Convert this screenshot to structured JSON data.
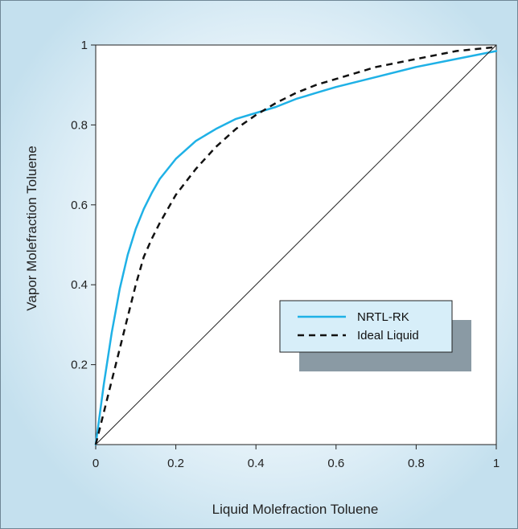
{
  "chart_data": {
    "type": "line",
    "xlabel": "Liquid Molefraction Toluene",
    "ylabel": "Vapor Molefraction Toluene",
    "xlim": [
      0,
      1
    ],
    "ylim": [
      0,
      1
    ],
    "x_ticks": [
      "0",
      "0.2",
      "0.4",
      "0.6",
      "0.8",
      "1"
    ],
    "y_ticks": [
      "0.2",
      "0.4",
      "0.6",
      "0.8",
      "1"
    ],
    "grid": false,
    "legend_position": "center-right",
    "series": [
      {
        "name": "NRTL-RK",
        "style": "solid",
        "color": "#1fb1e6",
        "x": [
          0,
          0.02,
          0.04,
          0.06,
          0.08,
          0.1,
          0.12,
          0.14,
          0.16,
          0.2,
          0.25,
          0.3,
          0.35,
          0.4,
          0.45,
          0.5,
          0.55,
          0.6,
          0.7,
          0.8,
          0.9,
          1.0
        ],
        "y": [
          0,
          0.15,
          0.28,
          0.39,
          0.475,
          0.54,
          0.59,
          0.63,
          0.665,
          0.715,
          0.76,
          0.79,
          0.815,
          0.83,
          0.845,
          0.865,
          0.88,
          0.895,
          0.92,
          0.945,
          0.965,
          0.985
        ]
      },
      {
        "name": "Ideal Liquid",
        "style": "dashed",
        "color": "#111111",
        "x": [
          0,
          0.02,
          0.04,
          0.06,
          0.08,
          0.1,
          0.12,
          0.14,
          0.16,
          0.2,
          0.25,
          0.3,
          0.35,
          0.4,
          0.45,
          0.5,
          0.55,
          0.6,
          0.7,
          0.8,
          0.9,
          1.0
        ],
        "y": [
          0,
          0.08,
          0.16,
          0.24,
          0.32,
          0.4,
          0.47,
          0.515,
          0.555,
          0.625,
          0.69,
          0.745,
          0.79,
          0.825,
          0.855,
          0.88,
          0.9,
          0.915,
          0.945,
          0.965,
          0.985,
          0.995
        ]
      },
      {
        "name": "",
        "style": "thin",
        "color": "#222222",
        "x": [
          0,
          1
        ],
        "y": [
          0,
          1
        ]
      }
    ]
  }
}
